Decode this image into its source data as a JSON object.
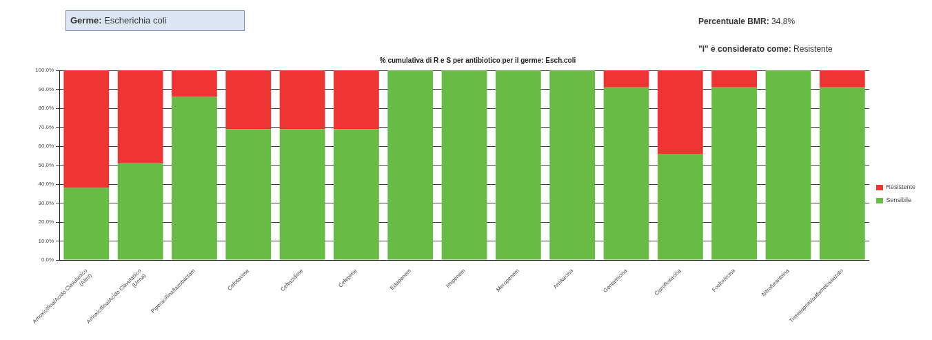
{
  "chart_data": {
    "type": "bar",
    "title": "% cumulativa di R e S per antibiotico per il germe: Esch.coli",
    "annotations": [
      "Germe: Escherichia coli",
      "Percentuale BMR: 34,8%",
      "\"I\" è considerato come: Resistente"
    ],
    "categories": [
      "Amoxicillina/Acido Clavulanico (Altro)",
      "Amoxicillina/Acido Clavulanico (Urina)",
      "Piperacillina/tazobactam",
      "Cefotaxime",
      "Ceftazidime",
      "Cefepime",
      "Ertapenem",
      "Imipenem",
      "Meropenem",
      "Amikacina",
      "Gentamicina",
      "Ciprofloxacina",
      "Fosfomicina",
      "Nitrofurantoina",
      "Trimetoprim/sulfametossazolo"
    ],
    "series": [
      {
        "name": "Sensibile",
        "color": "#68bc45",
        "values": [
          38,
          51,
          86,
          69,
          69,
          69,
          100,
          100,
          100,
          100,
          91,
          56,
          91,
          100,
          91
        ]
      },
      {
        "name": "Resistente",
        "color": "#ef3434",
        "values": [
          62,
          49,
          14,
          31,
          31,
          31,
          0,
          0,
          0,
          0,
          9,
          44,
          9,
          0,
          9
        ]
      }
    ],
    "stacked": true,
    "ylim": [
      0,
      100
    ],
    "yticks": [
      {
        "value": 0,
        "label": "0.0%"
      },
      {
        "value": 10,
        "label": "10.0%"
      },
      {
        "value": 20,
        "label": "20.0%"
      },
      {
        "value": 30,
        "label": "30.0%"
      },
      {
        "value": 40,
        "label": "40.0%"
      },
      {
        "value": 50,
        "label": "50.0%"
      },
      {
        "value": 60,
        "label": "60.0%"
      },
      {
        "value": 70,
        "label": "70.0%"
      },
      {
        "value": 80,
        "label": "80.0%"
      },
      {
        "value": 90,
        "label": "90.0%"
      },
      {
        "value": 100,
        "label": "100.0%"
      }
    ],
    "grid": "y",
    "legend": "right"
  }
}
